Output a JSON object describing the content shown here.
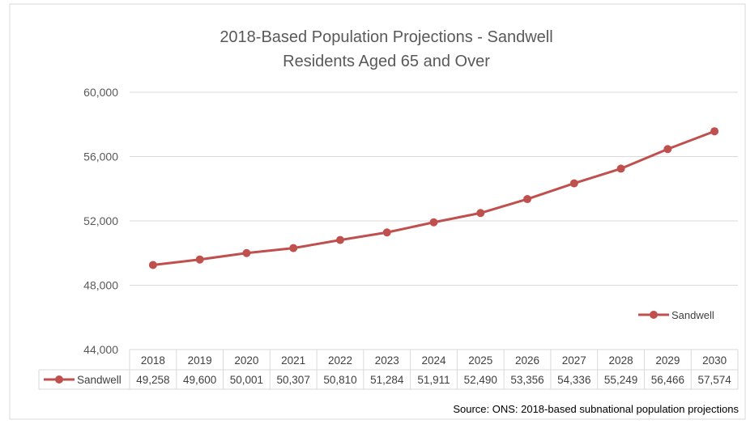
{
  "chart_data": {
    "type": "line",
    "title": "2018-Based Population Projections - Sandwell",
    "subtitle": "Residents Aged 65 and Over",
    "categories": [
      "2018",
      "2019",
      "2020",
      "2021",
      "2022",
      "2023",
      "2024",
      "2025",
      "2026",
      "2027",
      "2028",
      "2029",
      "2030"
    ],
    "series": [
      {
        "name": "Sandwell",
        "values": [
          49258,
          49600,
          50001,
          50307,
          50810,
          51284,
          51911,
          52490,
          53356,
          54336,
          55249,
          56466,
          57574
        ],
        "labels": [
          "49,258",
          "49,600",
          "50,001",
          "50,307",
          "50,810",
          "51,284",
          "51,911",
          "52,490",
          "53,356",
          "54,336",
          "55,249",
          "56,466",
          "57,574"
        ]
      }
    ],
    "ylim": [
      44000,
      60000
    ],
    "yticks": [
      44000,
      48000,
      52000,
      56000,
      60000
    ],
    "ytick_labels": [
      "44,000",
      "48,000",
      "52,000",
      "56,000",
      "60,000"
    ],
    "grid": true,
    "legend_placement": "bottom-right",
    "data_table": true,
    "line_color": "#C0504D",
    "gridline_color": "#D9D9D9",
    "source": "Source: ONS: 2018-based subnational population projections"
  }
}
